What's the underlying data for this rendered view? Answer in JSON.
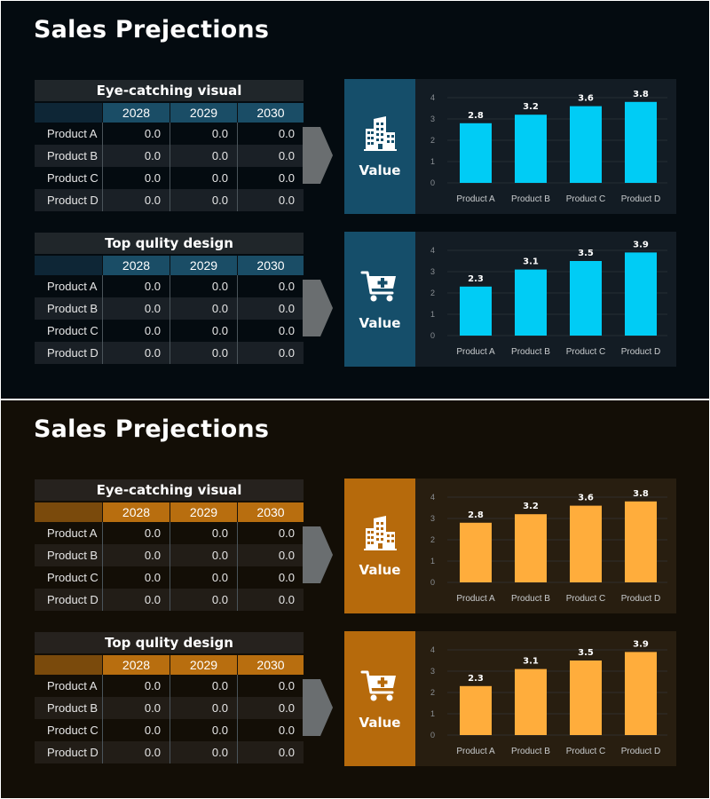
{
  "slides": [
    {
      "id": "blue",
      "title": "Sales Prejections",
      "accent": "#00ccf5",
      "panels": [
        {
          "table": {
            "title": "Eye-catching visual",
            "headers": [
              "",
              "2028",
              "2029",
              "2030"
            ],
            "rows": [
              [
                "Product A",
                "0.0",
                "0.0",
                "0.0"
              ],
              [
                "Product B",
                "0.0",
                "0.0",
                "0.0"
              ],
              [
                "Product C",
                "0.0",
                "0.0",
                "0.0"
              ],
              [
                "Product D",
                "0.0",
                "0.0",
                "0.0"
              ]
            ]
          },
          "value_label": "Value",
          "icon": "buildings-icon",
          "chart_data": {
            "type": "bar",
            "categories": [
              "Product A",
              "Product B",
              "Product C",
              "Product D"
            ],
            "values": [
              2.8,
              3.2,
              3.6,
              3.8
            ],
            "data_labels": [
              "2.8",
              "3.2",
              "3.6",
              "3.8"
            ],
            "yticks": [
              "0",
              "1",
              "2",
              "3",
              "4"
            ],
            "ylim": [
              0,
              4
            ],
            "grid": true
          }
        },
        {
          "table": {
            "title": "Top qulity design",
            "headers": [
              "",
              "2028",
              "2029",
              "2030"
            ],
            "rows": [
              [
                "Product A",
                "0.0",
                "0.0",
                "0.0"
              ],
              [
                "Product B",
                "0.0",
                "0.0",
                "0.0"
              ],
              [
                "Product C",
                "0.0",
                "0.0",
                "0.0"
              ],
              [
                "Product D",
                "0.0",
                "0.0",
                "0.0"
              ]
            ]
          },
          "value_label": "Value",
          "icon": "shopping-cart-icon",
          "chart_data": {
            "type": "bar",
            "categories": [
              "Product A",
              "Product B",
              "Product C",
              "Product D"
            ],
            "values": [
              2.3,
              3.1,
              3.5,
              3.9
            ],
            "data_labels": [
              "2.3",
              "3.1",
              "3.5",
              "3.9"
            ],
            "yticks": [
              "0",
              "1",
              "2",
              "3",
              "4"
            ],
            "ylim": [
              0,
              4
            ],
            "grid": true
          }
        }
      ]
    },
    {
      "id": "orange",
      "title": "Sales Prejections",
      "accent": "#ffad3c",
      "panels": [
        {
          "table": {
            "title": "Eye-catching visual",
            "headers": [
              "",
              "2028",
              "2029",
              "2030"
            ],
            "rows": [
              [
                "Product A",
                "0.0",
                "0.0",
                "0.0"
              ],
              [
                "Product B",
                "0.0",
                "0.0",
                "0.0"
              ],
              [
                "Product C",
                "0.0",
                "0.0",
                "0.0"
              ],
              [
                "Product D",
                "0.0",
                "0.0",
                "0.0"
              ]
            ]
          },
          "value_label": "Value",
          "icon": "buildings-icon",
          "chart_data": {
            "type": "bar",
            "categories": [
              "Product A",
              "Product B",
              "Product C",
              "Product D"
            ],
            "values": [
              2.8,
              3.2,
              3.6,
              3.8
            ],
            "data_labels": [
              "2.8",
              "3.2",
              "3.6",
              "3.8"
            ],
            "yticks": [
              "0",
              "1",
              "2",
              "3",
              "4"
            ],
            "ylim": [
              0,
              4
            ],
            "grid": true
          }
        },
        {
          "table": {
            "title": "Top qulity design",
            "headers": [
              "",
              "2028",
              "2029",
              "2030"
            ],
            "rows": [
              [
                "Product A",
                "0.0",
                "0.0",
                "0.0"
              ],
              [
                "Product B",
                "0.0",
                "0.0",
                "0.0"
              ],
              [
                "Product C",
                "0.0",
                "0.0",
                "0.0"
              ],
              [
                "Product D",
                "0.0",
                "0.0",
                "0.0"
              ]
            ]
          },
          "value_label": "Value",
          "icon": "shopping-cart-icon",
          "chart_data": {
            "type": "bar",
            "categories": [
              "Product A",
              "Product B",
              "Product C",
              "Product D"
            ],
            "values": [
              2.3,
              3.1,
              3.5,
              3.9
            ],
            "data_labels": [
              "2.3",
              "3.1",
              "3.5",
              "3.9"
            ],
            "yticks": [
              "0",
              "1",
              "2",
              "3",
              "4"
            ],
            "ylim": [
              0,
              4
            ],
            "grid": true
          }
        }
      ]
    }
  ]
}
